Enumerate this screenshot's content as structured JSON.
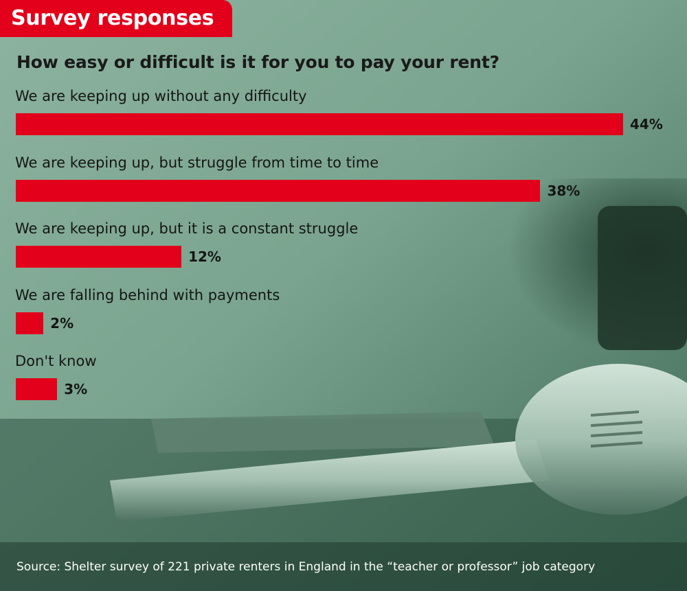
{
  "tag": "Survey responses",
  "chart_data": {
    "type": "bar",
    "orientation": "horizontal",
    "title": "How easy or difficult is it for you to pay your rent?",
    "categories": [
      "We are keeping up without any difficulty",
      "We are keeping up, but struggle from time to time",
      "We are keeping up, but it is a constant struggle",
      "We are falling behind with payments",
      "Don't know"
    ],
    "values": [
      44,
      38,
      12,
      2,
      3
    ],
    "value_labels": [
      "44%",
      "38%",
      "12%",
      "2%",
      "3%"
    ],
    "unit": "%",
    "bar_color": "#e2001a",
    "grid": false,
    "legend": "none"
  },
  "source": "Source: Shelter survey of 221 private renters in England in the “teacher or professor” job category",
  "colors": {
    "accent": "#e2001a",
    "text": "#151515",
    "background": "#6f9a85"
  }
}
